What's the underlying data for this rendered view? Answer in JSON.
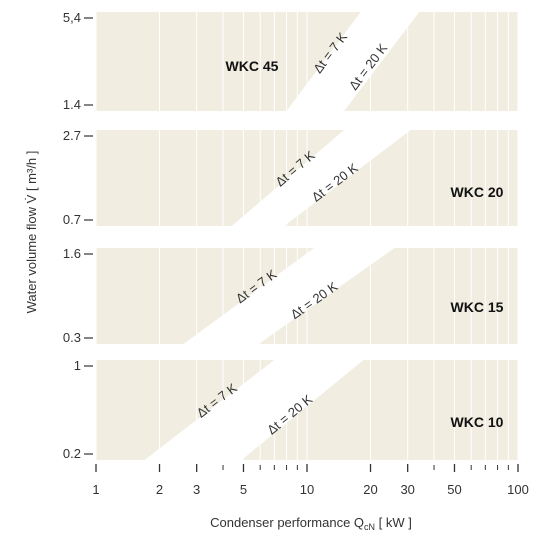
{
  "chart_data": {
    "type": "area",
    "x_scale": "log",
    "xlim": [
      1,
      100
    ],
    "x_ticks": [
      1,
      2,
      3,
      5,
      10,
      20,
      30,
      50,
      100
    ],
    "xlabel": "Condenser performance Q",
    "xlabel_sub": "cN",
    "xlabel_unit": " [ kW ]",
    "ylabel": "Water volume flow V̇ [ m³/h ]",
    "grid": true,
    "colors": {
      "panel_bg": "#f1ede1",
      "band_fill": "#ffffff",
      "grid": "#ffffff",
      "text": "#333333"
    },
    "panels": [
      {
        "label": "WKC 45",
        "y_min_label": "1.4",
        "y_max_label": "5,4",
        "band": {
          "lower": {
            "name": "Δt = 20 K",
            "x_start": 15,
            "x_end": 34
          },
          "upper": {
            "name": "Δt = 7 K",
            "x_start": 8,
            "x_end": 18
          }
        }
      },
      {
        "label": "WKC 20",
        "y_min_label": "0.7",
        "y_max_label": "2.7",
        "band": {
          "lower": {
            "name": "Δt = 20 K",
            "x_start": 7.8,
            "x_end": 31
          },
          "upper": {
            "name": "Δt = 7 K",
            "x_start": 4.4,
            "x_end": 15
          }
        }
      },
      {
        "label": "WKC 15",
        "y_min_label": "0.3",
        "y_max_label": "1.6",
        "band": {
          "lower": {
            "name": "Δt = 20 K",
            "x_start": 5.9,
            "x_end": 26
          },
          "upper": {
            "name": "Δt = 7 K",
            "x_start": 2.6,
            "x_end": 10.8
          }
        }
      },
      {
        "label": "WKC 10",
        "y_min_label": "0.2",
        "y_max_label": "1",
        "band": {
          "lower": {
            "name": "Δt = 20 K",
            "x_start": 4.9,
            "x_end": 18.5
          },
          "upper": {
            "name": "Δt = 7 K",
            "x_start": 1.7,
            "x_end": 7
          }
        }
      }
    ]
  }
}
